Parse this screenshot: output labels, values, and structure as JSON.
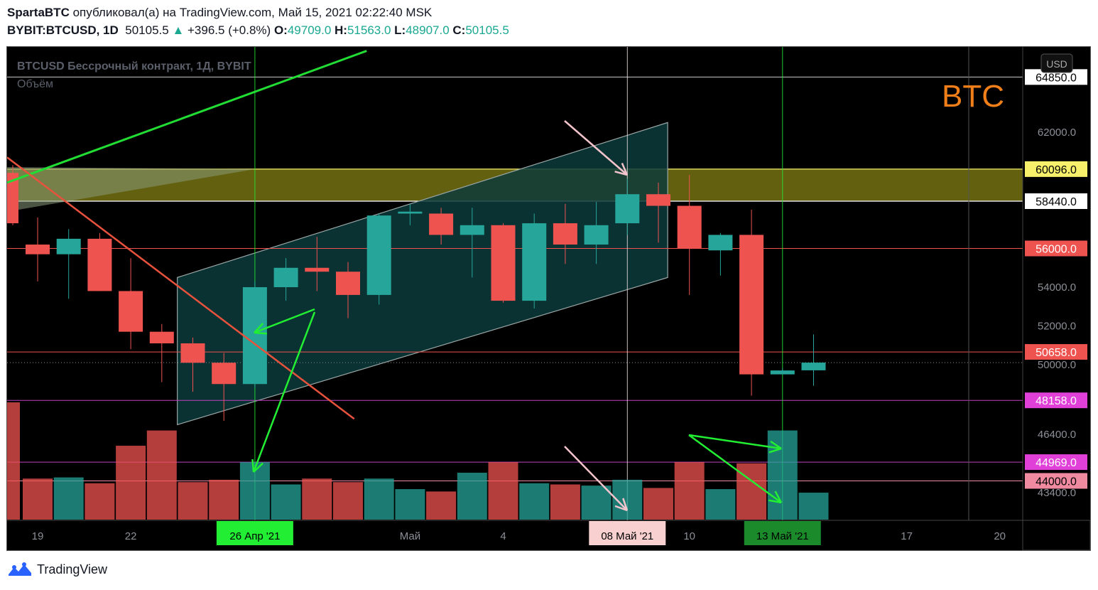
{
  "header": {
    "author": "SpartaBTC",
    "published": "опубликовал(а) на TradingView.com, Май 15, 2021 02:22:40 MSK",
    "symbol": "BYBIT:BTCUSD, 1D",
    "last": "50105.5",
    "change": "+396.5 (+0.8%)",
    "open_label": "O:",
    "open": "49709.0",
    "high_label": "H:",
    "high": "51563.0",
    "low_label": "L:",
    "low": "48907.0",
    "close_label": "C:",
    "close": "50105.5"
  },
  "chart_title": "BTCUSD Бессрочный контракт, 1Д, BYBIT",
  "volume_label": "Объём",
  "watermark": "BTC",
  "currency_button": "USD",
  "footer_brand": "TradingView",
  "colors": {
    "up": "#26a69a",
    "down": "#ef5350",
    "frame": "#000000",
    "zone_fill": "#b5b11e",
    "channel_fill": "#0d3b3b",
    "green_line": "#22dd33",
    "red_line": "#e8523c",
    "watermark": "#f07f1a"
  },
  "chart_data": {
    "type": "candlestick",
    "x_tick_labels": [
      {
        "label": "19",
        "day": 0
      },
      {
        "label": "22",
        "day": 3
      },
      {
        "label": "Май",
        "day": 12
      },
      {
        "label": "4",
        "day": 15
      },
      {
        "label": "10",
        "day": 21
      },
      {
        "label": "17",
        "day": 28
      },
      {
        "label": "20",
        "day": 31
      }
    ],
    "x_highlight_labels": [
      {
        "label": "26 Апр '21",
        "day": 7,
        "bg": "#22ee33",
        "fg": "#000000"
      },
      {
        "label": "08 Май '21",
        "day": 19,
        "bg": "#f8d0d0",
        "fg": "#000000"
      },
      {
        "label": "13 Май '21",
        "day": 24,
        "bg": "#1a8a2a",
        "fg": "#000000"
      }
    ],
    "y_ticks": [
      43400,
      44000,
      46400,
      50000,
      52000,
      54000,
      62000
    ],
    "price_labels": [
      {
        "value": 60096,
        "text": "60096.0",
        "bg": "#f7f06a",
        "fg": "#000000"
      },
      {
        "value": 58440,
        "text": "58440.0",
        "bg": "#ffffff",
        "fg": "#000000"
      },
      {
        "value": 56000,
        "text": "56000.0",
        "bg": "#ef5350",
        "fg": "#ffffff"
      },
      {
        "value": 50658,
        "text": "50658.0",
        "bg": "#ef5350",
        "fg": "#ffffff"
      },
      {
        "value": 48158,
        "text": "48158.0",
        "bg": "#e040d8",
        "fg": "#ffffff"
      },
      {
        "value": 44969,
        "text": "44969.0",
        "bg": "#e040d8",
        "fg": "#ffffff"
      },
      {
        "value": 44000,
        "text": "44000.0",
        "bg": "#f08aa0",
        "fg": "#000000"
      },
      {
        "value": 64850,
        "text": "64850.0",
        "bg": "#ffffff",
        "fg": "#000000"
      }
    ],
    "resistance_zone": [
      58440,
      60096
    ],
    "candles": [
      {
        "day": -0.6,
        "o": 59900,
        "h": 60300,
        "l": 57200,
        "c": 57300
      },
      {
        "day": 0,
        "o": 56200,
        "h": 57600,
        "l": 54300,
        "c": 55700
      },
      {
        "day": 1,
        "o": 55700,
        "h": 57000,
        "l": 53400,
        "c": 56500
      },
      {
        "day": 2,
        "o": 56500,
        "h": 56800,
        "l": 53800,
        "c": 53800
      },
      {
        "day": 3,
        "o": 53800,
        "h": 55500,
        "l": 50800,
        "c": 51700
      },
      {
        "day": 4,
        "o": 51700,
        "h": 52100,
        "l": 49100,
        "c": 51100
      },
      {
        "day": 5,
        "o": 51100,
        "h": 51400,
        "l": 48600,
        "c": 50100
      },
      {
        "day": 6,
        "o": 50100,
        "h": 50600,
        "l": 47100,
        "c": 49000
      },
      {
        "day": 7,
        "o": 49000,
        "h": 54300,
        "l": 48800,
        "c": 54000
      },
      {
        "day": 8,
        "o": 54000,
        "h": 55500,
        "l": 53300,
        "c": 55000
      },
      {
        "day": 9,
        "o": 55000,
        "h": 56600,
        "l": 53800,
        "c": 54800
      },
      {
        "day": 10,
        "o": 54800,
        "h": 55300,
        "l": 52400,
        "c": 53600
      },
      {
        "day": 11,
        "o": 53600,
        "h": 57800,
        "l": 53100,
        "c": 57700
      },
      {
        "day": 12,
        "o": 57800,
        "h": 58300,
        "l": 57200,
        "c": 57900
      },
      {
        "day": 13,
        "o": 57800,
        "h": 58100,
        "l": 56200,
        "c": 56700
      },
      {
        "day": 14,
        "o": 56700,
        "h": 58100,
        "l": 54500,
        "c": 57200
      },
      {
        "day": 15,
        "o": 57200,
        "h": 57300,
        "l": 53200,
        "c": 53300
      },
      {
        "day": 16,
        "o": 53300,
        "h": 57800,
        "l": 52900,
        "c": 57300
      },
      {
        "day": 17,
        "o": 57300,
        "h": 58300,
        "l": 55200,
        "c": 56200
      },
      {
        "day": 18,
        "o": 56200,
        "h": 58400,
        "l": 55200,
        "c": 57200
      },
      {
        "day": 19,
        "o": 57300,
        "h": 59600,
        "l": 56700,
        "c": 58800
      },
      {
        "day": 20,
        "o": 58800,
        "h": 59400,
        "l": 56300,
        "c": 58200
      },
      {
        "day": 21,
        "o": 58200,
        "h": 59800,
        "l": 53600,
        "c": 56000
      },
      {
        "day": 22,
        "o": 55900,
        "h": 56800,
        "l": 54600,
        "c": 56700
      },
      {
        "day": 23,
        "o": 56700,
        "h": 58000,
        "l": 48400,
        "c": 49500
      },
      {
        "day": 24,
        "o": 49500,
        "h": 49800,
        "l": 49500,
        "c": 49700
      },
      {
        "day": 25,
        "o": 49709,
        "h": 51563,
        "l": 48907,
        "c": 50105.5
      }
    ],
    "volumes": [
      {
        "day": -0.6,
        "v": 100,
        "dir": "down"
      },
      {
        "day": 0,
        "v": 35,
        "dir": "down"
      },
      {
        "day": 1,
        "v": 36,
        "dir": "up"
      },
      {
        "day": 2,
        "v": 31,
        "dir": "down"
      },
      {
        "day": 3,
        "v": 63,
        "dir": "down"
      },
      {
        "day": 4,
        "v": 76,
        "dir": "down"
      },
      {
        "day": 5,
        "v": 32,
        "dir": "down"
      },
      {
        "day": 6,
        "v": 34,
        "dir": "down"
      },
      {
        "day": 7,
        "v": 49,
        "dir": "up"
      },
      {
        "day": 8,
        "v": 30,
        "dir": "up"
      },
      {
        "day": 9,
        "v": 35,
        "dir": "down"
      },
      {
        "day": 10,
        "v": 32,
        "dir": "down"
      },
      {
        "day": 11,
        "v": 35,
        "dir": "up"
      },
      {
        "day": 12,
        "v": 26,
        "dir": "up"
      },
      {
        "day": 13,
        "v": 24,
        "dir": "down"
      },
      {
        "day": 14,
        "v": 40,
        "dir": "up"
      },
      {
        "day": 15,
        "v": 49,
        "dir": "down"
      },
      {
        "day": 16,
        "v": 31,
        "dir": "up"
      },
      {
        "day": 17,
        "v": 30,
        "dir": "down"
      },
      {
        "day": 18,
        "v": 29,
        "dir": "up"
      },
      {
        "day": 19,
        "v": 34,
        "dir": "up"
      },
      {
        "day": 20,
        "v": 27,
        "dir": "down"
      },
      {
        "day": 21,
        "v": 49,
        "dir": "down"
      },
      {
        "day": 22,
        "v": 26,
        "dir": "up"
      },
      {
        "day": 23,
        "v": 48,
        "dir": "down"
      },
      {
        "day": 24,
        "v": 76,
        "dir": "up"
      },
      {
        "day": 25,
        "v": 23,
        "dir": "up"
      }
    ],
    "ylim": [
      42900,
      66200
    ],
    "xlim": [
      -0.6,
      32.4
    ],
    "grid": false,
    "legend": "none"
  }
}
